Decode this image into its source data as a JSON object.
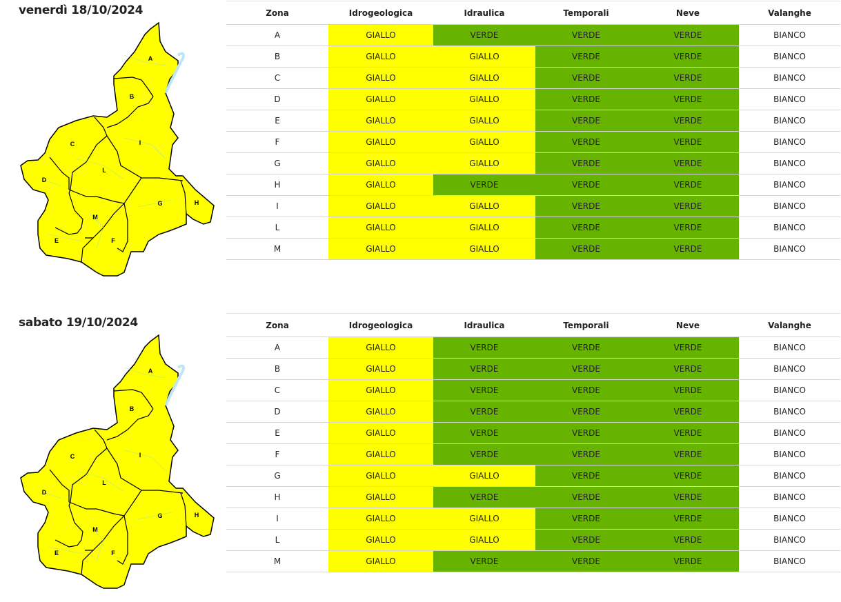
{
  "colors": {
    "GIALLO": "#ffff00",
    "VERDE": "#66b300",
    "BIANCO": "#ffffff"
  },
  "headers": [
    "Zona",
    "Idrogeologica",
    "Idraulica",
    "Temporali",
    "Neve",
    "Valanghe"
  ],
  "days": [
    {
      "title": "venerdì 18/10/2024",
      "rows": [
        [
          "A",
          "GIALLO",
          "VERDE",
          "VERDE",
          "VERDE",
          "BIANCO"
        ],
        [
          "B",
          "GIALLO",
          "GIALLO",
          "VERDE",
          "VERDE",
          "BIANCO"
        ],
        [
          "C",
          "GIALLO",
          "GIALLO",
          "VERDE",
          "VERDE",
          "BIANCO"
        ],
        [
          "D",
          "GIALLO",
          "GIALLO",
          "VERDE",
          "VERDE",
          "BIANCO"
        ],
        [
          "E",
          "GIALLO",
          "GIALLO",
          "VERDE",
          "VERDE",
          "BIANCO"
        ],
        [
          "F",
          "GIALLO",
          "GIALLO",
          "VERDE",
          "VERDE",
          "BIANCO"
        ],
        [
          "G",
          "GIALLO",
          "GIALLO",
          "VERDE",
          "VERDE",
          "BIANCO"
        ],
        [
          "H",
          "GIALLO",
          "VERDE",
          "VERDE",
          "VERDE",
          "BIANCO"
        ],
        [
          "I",
          "GIALLO",
          "GIALLO",
          "VERDE",
          "VERDE",
          "BIANCO"
        ],
        [
          "L",
          "GIALLO",
          "GIALLO",
          "VERDE",
          "VERDE",
          "BIANCO"
        ],
        [
          "M",
          "GIALLO",
          "GIALLO",
          "VERDE",
          "VERDE",
          "BIANCO"
        ]
      ]
    },
    {
      "title": "sabato 19/10/2024",
      "rows": [
        [
          "A",
          "GIALLO",
          "VERDE",
          "VERDE",
          "VERDE",
          "BIANCO"
        ],
        [
          "B",
          "GIALLO",
          "VERDE",
          "VERDE",
          "VERDE",
          "BIANCO"
        ],
        [
          "C",
          "GIALLO",
          "VERDE",
          "VERDE",
          "VERDE",
          "BIANCO"
        ],
        [
          "D",
          "GIALLO",
          "VERDE",
          "VERDE",
          "VERDE",
          "BIANCO"
        ],
        [
          "E",
          "GIALLO",
          "VERDE",
          "VERDE",
          "VERDE",
          "BIANCO"
        ],
        [
          "F",
          "GIALLO",
          "VERDE",
          "VERDE",
          "VERDE",
          "BIANCO"
        ],
        [
          "G",
          "GIALLO",
          "GIALLO",
          "VERDE",
          "VERDE",
          "BIANCO"
        ],
        [
          "H",
          "GIALLO",
          "VERDE",
          "VERDE",
          "VERDE",
          "BIANCO"
        ],
        [
          "I",
          "GIALLO",
          "GIALLO",
          "VERDE",
          "VERDE",
          "BIANCO"
        ],
        [
          "L",
          "GIALLO",
          "GIALLO",
          "VERDE",
          "VERDE",
          "BIANCO"
        ],
        [
          "M",
          "GIALLO",
          "VERDE",
          "VERDE",
          "VERDE",
          "BIANCO"
        ]
      ]
    }
  ],
  "map_zones": [
    "A",
    "B",
    "C",
    "D",
    "E",
    "F",
    "G",
    "H",
    "I",
    "L",
    "M"
  ]
}
